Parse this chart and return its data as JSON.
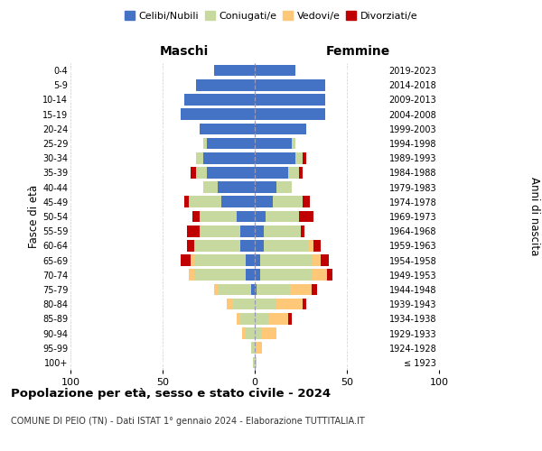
{
  "age_groups": [
    "100+",
    "95-99",
    "90-94",
    "85-89",
    "80-84",
    "75-79",
    "70-74",
    "65-69",
    "60-64",
    "55-59",
    "50-54",
    "45-49",
    "40-44",
    "35-39",
    "30-34",
    "25-29",
    "20-24",
    "15-19",
    "10-14",
    "5-9",
    "0-4"
  ],
  "birth_years": [
    "≤ 1923",
    "1924-1928",
    "1929-1933",
    "1934-1938",
    "1939-1943",
    "1944-1948",
    "1949-1953",
    "1954-1958",
    "1959-1963",
    "1964-1968",
    "1969-1973",
    "1974-1978",
    "1979-1983",
    "1984-1988",
    "1989-1993",
    "1994-1998",
    "1999-2003",
    "2004-2008",
    "2009-2013",
    "2014-2018",
    "2019-2023"
  ],
  "males_celibi": [
    0,
    0,
    0,
    0,
    0,
    2,
    5,
    5,
    8,
    8,
    10,
    18,
    20,
    26,
    28,
    26,
    30,
    40,
    38,
    32,
    22
  ],
  "males_coniugati": [
    1,
    2,
    5,
    8,
    12,
    18,
    28,
    28,
    25,
    22,
    20,
    18,
    8,
    6,
    4,
    2,
    0,
    0,
    0,
    0,
    0
  ],
  "males_vedovi": [
    0,
    0,
    2,
    2,
    3,
    2,
    3,
    2,
    0,
    0,
    0,
    0,
    0,
    0,
    0,
    0,
    0,
    0,
    0,
    0,
    0
  ],
  "males_divorziati": [
    0,
    0,
    0,
    0,
    0,
    0,
    0,
    5,
    4,
    7,
    4,
    2,
    0,
    3,
    0,
    0,
    0,
    0,
    0,
    0,
    0
  ],
  "fem_nubili": [
    0,
    0,
    0,
    0,
    0,
    1,
    3,
    3,
    5,
    5,
    6,
    10,
    12,
    18,
    22,
    20,
    28,
    38,
    38,
    38,
    22
  ],
  "fem_coniugate": [
    1,
    1,
    4,
    8,
    12,
    18,
    28,
    28,
    24,
    20,
    18,
    16,
    8,
    6,
    4,
    2,
    0,
    0,
    0,
    0,
    0
  ],
  "fem_vedove": [
    0,
    3,
    8,
    10,
    14,
    12,
    8,
    5,
    3,
    0,
    0,
    0,
    0,
    0,
    0,
    0,
    0,
    0,
    0,
    0,
    0
  ],
  "fem_divorziate": [
    0,
    0,
    0,
    2,
    2,
    3,
    3,
    4,
    4,
    2,
    8,
    4,
    0,
    2,
    2,
    0,
    0,
    0,
    0,
    0,
    0
  ],
  "colors": {
    "celibi_nubili": "#4472c4",
    "coniugati": "#c8d9a0",
    "vedovi": "#ffc878",
    "divorziati": "#c00000"
  },
  "xlim": 100,
  "title": "Popolazione per età, sesso e stato civile - 2024",
  "subtitle": "COMUNE DI PEIO (TN) - Dati ISTAT 1° gennaio 2024 - Elaborazione TUTTITALIA.IT",
  "ylabel_left": "Fasce di età",
  "ylabel_right": "Anni di nascita",
  "xlabel_left": "Maschi",
  "xlabel_right": "Femmine"
}
